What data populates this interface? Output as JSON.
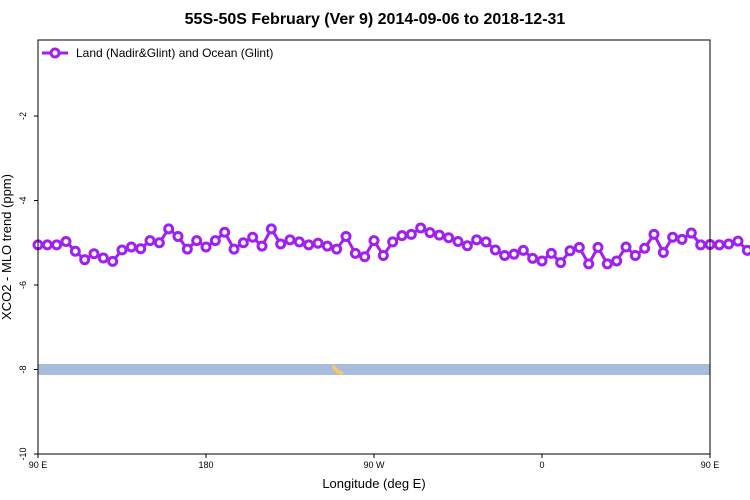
{
  "chart_data": {
    "type": "line",
    "title": "55S-50S February (Ver 9)   2014-09-06 to 2018-12-31",
    "xlabel": "Longitude (deg E)",
    "ylabel": "XCO2 - MLO trend (ppm)",
    "xlim": [
      90,
      450
    ],
    "ylim": [
      -10,
      -0.2
    ],
    "x_ticks": [
      {
        "value": 90,
        "label": "90 E"
      },
      {
        "value": 180,
        "label": "180"
      },
      {
        "value": 270,
        "label": "90 W"
      },
      {
        "value": 360,
        "label": "0"
      },
      {
        "value": 450,
        "label": "90 E"
      },
      {
        "value": 540,
        "label": "180"
      }
    ],
    "y_ticks": [
      {
        "value": -2,
        "label": "-2"
      },
      {
        "value": -4,
        "label": "-4"
      },
      {
        "value": -6,
        "label": "-6"
      },
      {
        "value": -8,
        "label": "-8"
      },
      {
        "value": -10,
        "label": "-10"
      }
    ],
    "legend_position": "top-left",
    "series": [
      {
        "name": "Land (Nadir&Glint) and Ocean (Glint)",
        "color": "#a020f0",
        "x_start": 90,
        "x_step": 5,
        "values": [
          -5.05,
          -5.05,
          -5.05,
          -4.97,
          -5.2,
          -5.4,
          -5.26,
          -5.36,
          -5.44,
          -5.17,
          -5.1,
          -5.14,
          -4.95,
          -5.0,
          -4.67,
          -4.85,
          -5.15,
          -4.95,
          -5.1,
          -4.95,
          -4.75,
          -5.15,
          -5.0,
          -4.87,
          -5.08,
          -4.67,
          -5.03,
          -4.93,
          -4.98,
          -5.05,
          -5.01,
          -5.08,
          -5.15,
          -4.85,
          -5.25,
          -5.33,
          -4.95,
          -5.3,
          -4.98,
          -4.83,
          -4.8,
          -4.65,
          -4.76,
          -4.82,
          -4.88,
          -4.97,
          -5.07,
          -4.93,
          -4.98,
          -5.17,
          -5.3,
          -5.27,
          -5.18,
          -5.37,
          -5.43,
          -5.25,
          -5.47,
          -5.19,
          -5.11,
          -5.5,
          -5.11,
          -5.5,
          -5.43,
          -5.1,
          -5.3,
          -5.13,
          -4.8,
          -5.23,
          -4.87,
          -4.92,
          -4.77,
          -5.05,
          -5.04,
          -5.05,
          -5.03,
          -4.96,
          -5.18,
          -5.37,
          -5.27,
          -5.35,
          -5.4,
          -5.18,
          -5.1,
          -5.13,
          -4.97,
          -5.0,
          -4.68,
          -4.85,
          -5.15,
          -4.97
        ]
      }
    ],
    "band": {
      "y_center": -8.0,
      "y_halfwidth": 0.13,
      "color": "#a8bcdc",
      "marker_color": "#f3c96a"
    }
  }
}
